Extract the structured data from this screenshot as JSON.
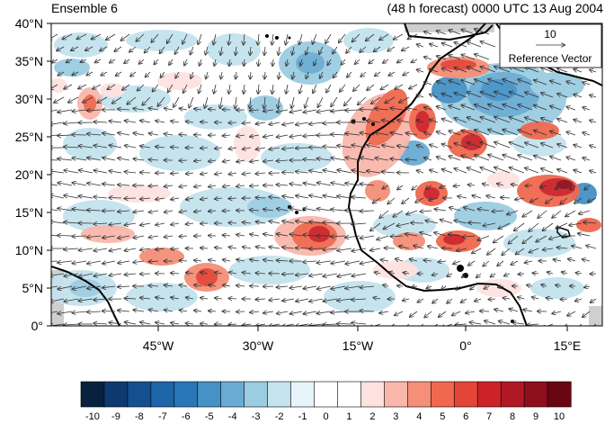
{
  "header": {
    "left_title": "Ensemble 6",
    "right_title": "(48 h forecast) 0000 UTC 13 Aug 2004"
  },
  "axes": {
    "lat_labels": [
      "40°N",
      "35°N",
      "30°N",
      "25°N",
      "20°N",
      "15°N",
      "10°N",
      "5°N",
      "0°"
    ],
    "lon_labels": [
      "45°W",
      "30°W",
      "15°W",
      "0°",
      "15°E"
    ]
  },
  "reference_vector": {
    "value": "10",
    "label": "Reference Vector"
  },
  "colorbar": {
    "labels": [
      "-10",
      "-9",
      "-8",
      "-7",
      "-6",
      "-5",
      "-4",
      "-3",
      "-2",
      "-1",
      "0",
      "1",
      "2",
      "3",
      "4",
      "5",
      "6",
      "7",
      "8",
      "9",
      "10"
    ],
    "colors": [
      "#08213f",
      "#0c3a70",
      "#14508f",
      "#1c65a8",
      "#2a77b7",
      "#4592c6",
      "#6aabd3",
      "#9bcce1",
      "#c4e3ee",
      "#e7f5fa",
      "#ffffff",
      "#ffffff",
      "#fde2e0",
      "#f9b7ab",
      "#f58f78",
      "#ef684f",
      "#e34536",
      "#cc2329",
      "#b01825",
      "#8d0e1c",
      "#6a0610"
    ]
  }
}
